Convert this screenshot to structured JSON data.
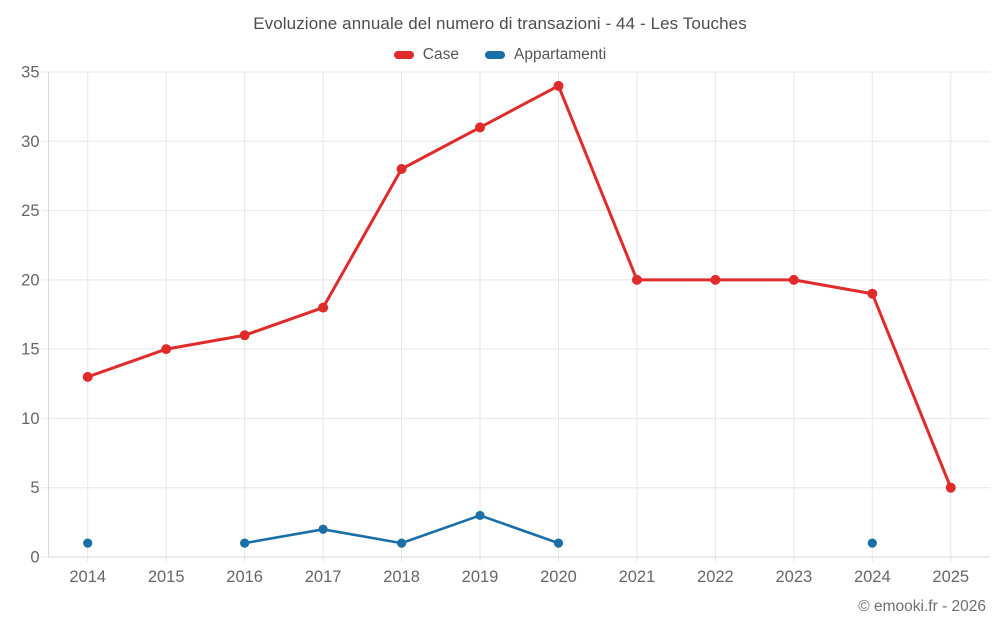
{
  "title": "Evoluzione annuale del numero di transazioni - 44 - Les Touches",
  "legend": {
    "items": [
      {
        "label": "Case",
        "color": "#e02b2b"
      },
      {
        "label": "Appartamenti",
        "color": "#1a6fa8"
      }
    ]
  },
  "footer": {
    "copyright": "© emooki.fr - 2026"
  },
  "chart_data": {
    "type": "line",
    "title": "Evoluzione annuale del numero di transazioni - 44 - Les Touches",
    "categories": [
      "2014",
      "2015",
      "2016",
      "2017",
      "2018",
      "2019",
      "2020",
      "2021",
      "2022",
      "2023",
      "2024",
      "2025"
    ],
    "series": [
      {
        "name": "Case",
        "color": "#e02b2b",
        "values": [
          13,
          15,
          16,
          18,
          28,
          31,
          34,
          20,
          20,
          20,
          19,
          5
        ]
      },
      {
        "name": "Appartamenti",
        "color": "#1a6fa8",
        "values": [
          1,
          null,
          1,
          2,
          1,
          3,
          1,
          null,
          null,
          null,
          1,
          null
        ]
      }
    ],
    "xlabel": "",
    "ylabel": "",
    "ylim": [
      0,
      35
    ],
    "yticks": [
      0,
      5,
      10,
      15,
      20,
      25,
      30,
      35
    ],
    "grid": true,
    "legend_position": "top",
    "axis_text_color": "#666666",
    "gridline_color": "#e7e7e7",
    "axis_line_color": "#d8d8d8"
  }
}
